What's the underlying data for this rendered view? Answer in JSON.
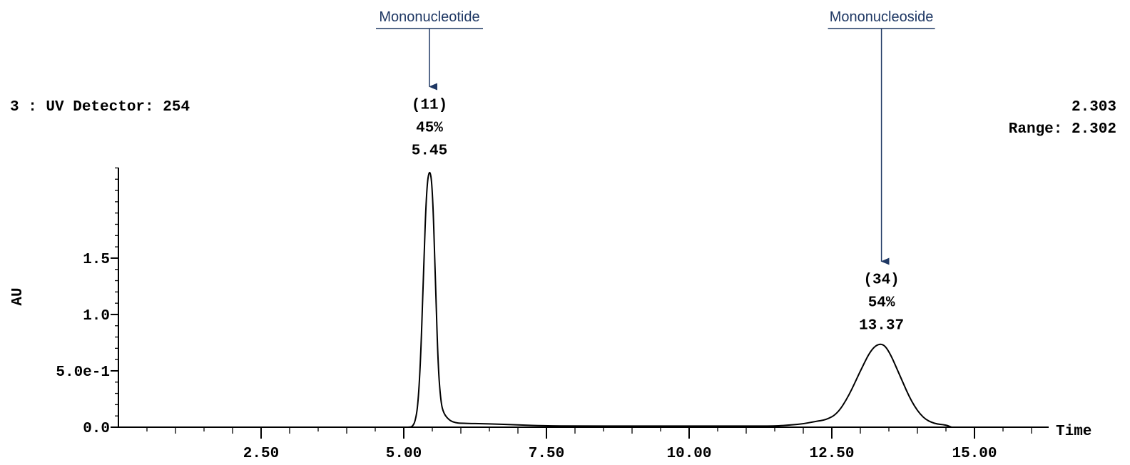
{
  "header": {
    "detector": "3 : UV Detector: 254",
    "max_value": "2.303",
    "range": "Range: 2.302"
  },
  "chart_data": {
    "type": "line",
    "xlabel": "Time",
    "ylabel": "AU",
    "xlim": [
      0,
      16.3
    ],
    "ylim": [
      0,
      2.303
    ],
    "x_ticks": [
      {
        "value": 2.5,
        "label": "2.50"
      },
      {
        "value": 5.0,
        "label": "5.00"
      },
      {
        "value": 7.5,
        "label": "7.50"
      },
      {
        "value": 10.0,
        "label": "10.00"
      },
      {
        "value": 12.5,
        "label": "12.50"
      },
      {
        "value": 15.0,
        "label": "15.00"
      }
    ],
    "y_ticks": [
      {
        "value": 0.0,
        "label": "0.0"
      },
      {
        "value": 0.5,
        "label": "5.0e-1"
      },
      {
        "value": 1.0,
        "label": "1.0"
      },
      {
        "value": 1.5,
        "label": "1.5"
      }
    ],
    "grid": false,
    "series": [
      {
        "x": [
          5.0,
          5.1,
          5.15,
          5.2,
          5.25,
          5.3,
          5.35,
          5.4,
          5.45,
          5.5,
          5.55,
          5.6,
          5.65,
          5.7,
          5.8,
          5.9,
          6.0,
          6.5,
          7.0,
          7.5,
          8.0,
          9.0,
          10.0,
          11.0,
          11.5,
          11.8,
          12.0,
          12.2,
          12.4,
          12.6,
          12.8,
          13.0,
          13.2,
          13.37,
          13.5,
          13.7,
          13.9,
          14.1,
          14.3,
          14.5,
          14.6
        ],
        "y": [
          0.0,
          0.0,
          0.005,
          0.05,
          0.2,
          0.65,
          1.45,
          2.12,
          2.3,
          2.15,
          1.4,
          0.55,
          0.22,
          0.12,
          0.06,
          0.04,
          0.035,
          0.03,
          0.02,
          0.012,
          0.01,
          0.01,
          0.01,
          0.01,
          0.01,
          0.02,
          0.03,
          0.05,
          0.065,
          0.12,
          0.28,
          0.5,
          0.7,
          0.75,
          0.68,
          0.45,
          0.22,
          0.08,
          0.03,
          0.02,
          0.0
        ]
      }
    ],
    "peaks": [
      {
        "time": 5.45,
        "number": "(11)",
        "percent": "45%",
        "time_label": "5.45",
        "y": 2.3,
        "name": "Mononucleotide"
      },
      {
        "time": 13.37,
        "number": "(34)",
        "percent": "54%",
        "time_label": "13.37",
        "y": 0.75,
        "name": "Mononucleoside"
      }
    ]
  }
}
